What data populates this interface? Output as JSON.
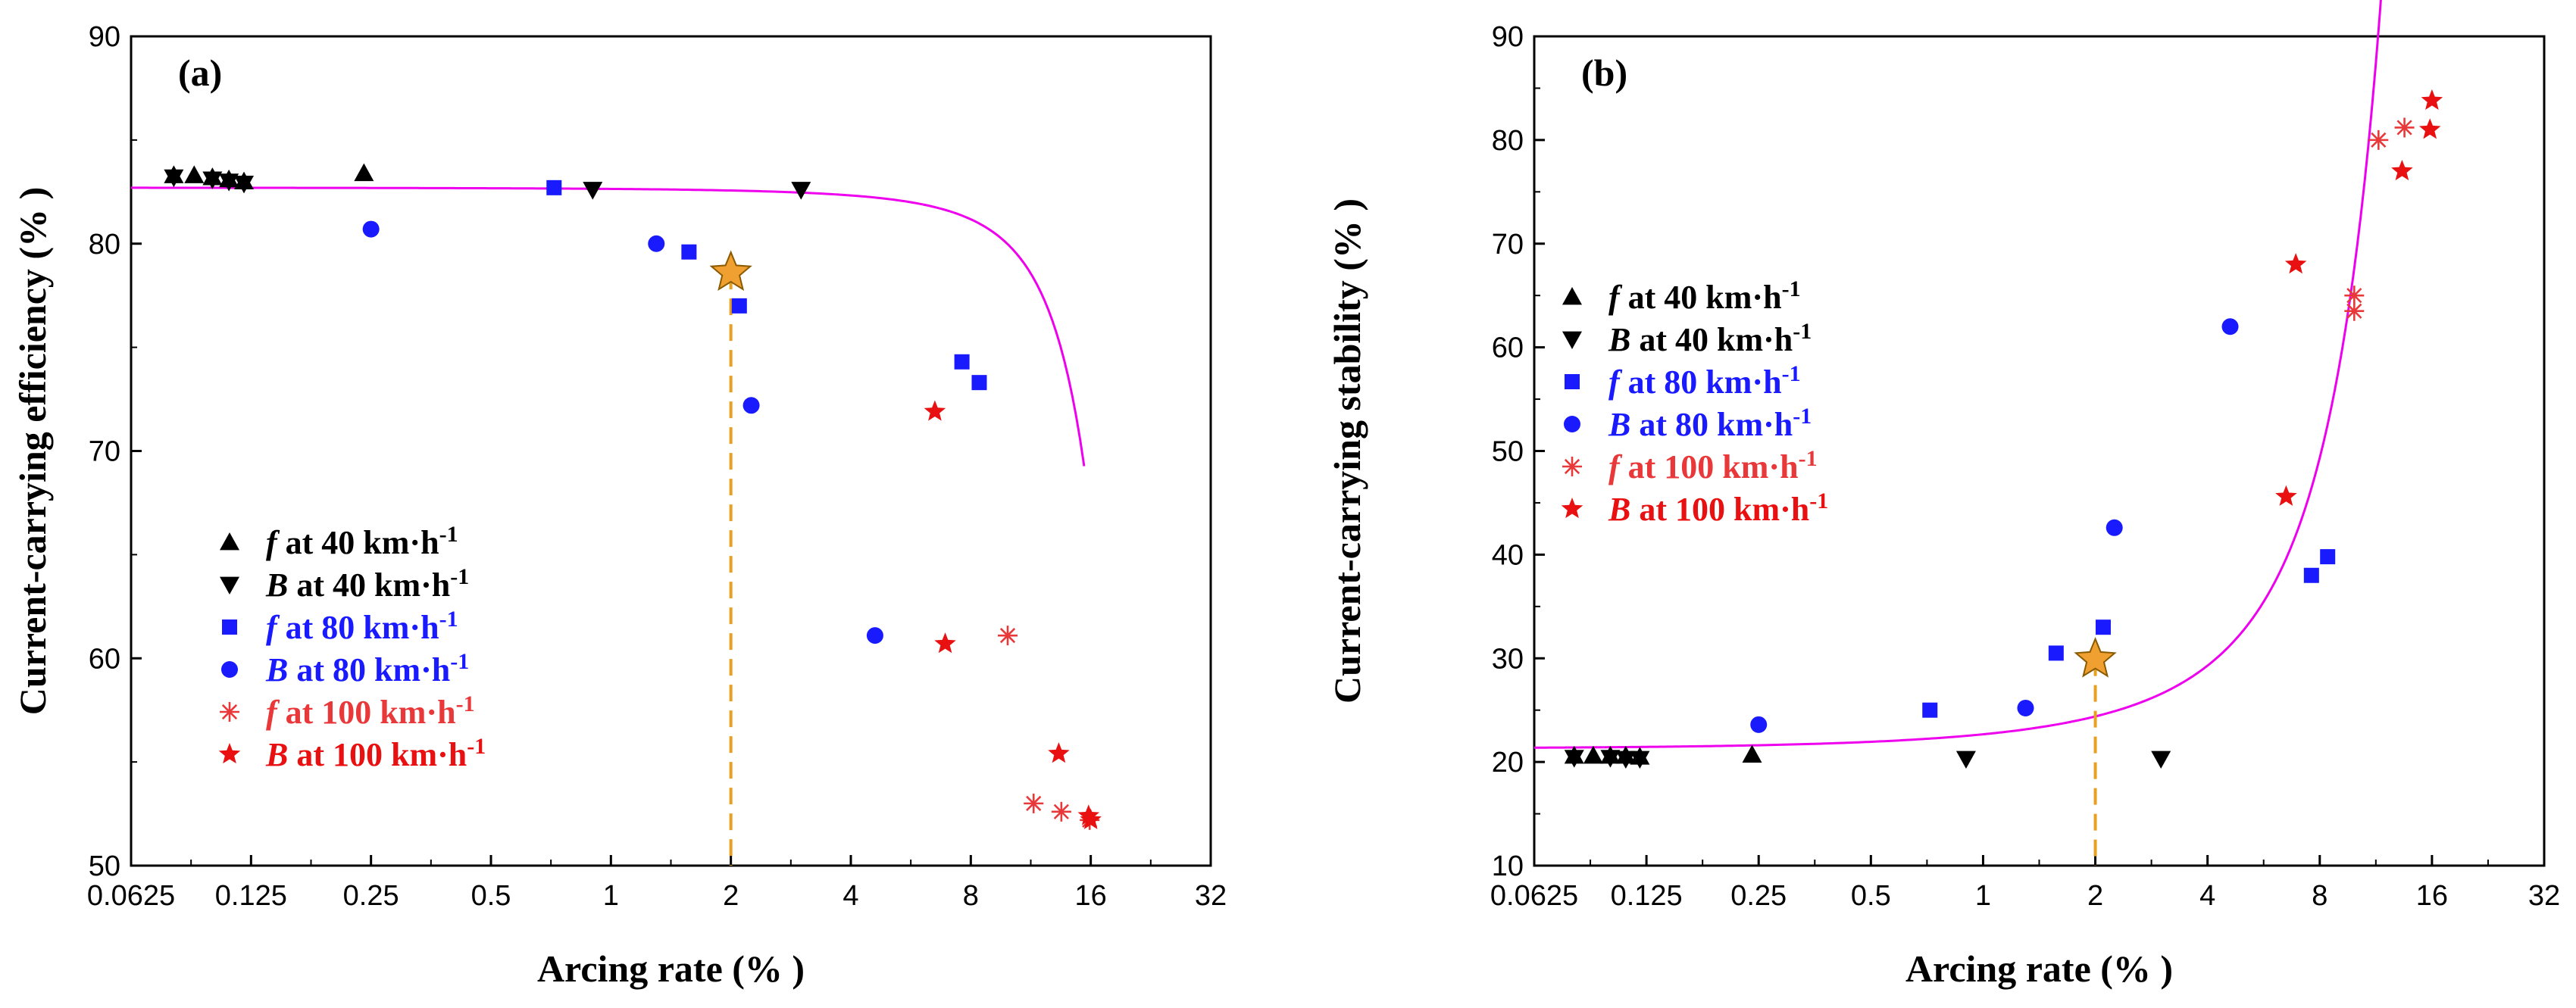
{
  "colors": {
    "fit": "#ee00ee",
    "guide": "#e8a020",
    "star_fill": "#f0a030",
    "star_stroke": "#8a5a00"
  },
  "chart_data": [
    {
      "id": "a",
      "type": "scatter",
      "panel_label": "(a)",
      "xlabel": "Arcing rate (% )",
      "ylabel": "Current-carrying efficiency (% )",
      "x_scale": "log2",
      "xlim": [
        0.0625,
        32
      ],
      "ylim": [
        50,
        90
      ],
      "x_ticks": [
        0.0625,
        0.125,
        0.25,
        0.5,
        1,
        2,
        4,
        8,
        16,
        32
      ],
      "x_tick_labels": [
        "0.0625",
        "0.125",
        "0.25",
        "0.5",
        "1",
        "2",
        "4",
        "8",
        "16",
        "32"
      ],
      "y_ticks": [
        50,
        60,
        70,
        80,
        90
      ],
      "y_tick_labels": [
        "50",
        "60",
        "70",
        "80",
        "90"
      ],
      "legend_position": "bottom-left",
      "series": [
        {
          "name_italic": "f",
          "name_rest": " at 40 km·h",
          "name_sup": "-1",
          "marker": "triangle-up",
          "color": "#000000",
          "points": [
            [
              0.08,
              83.3
            ],
            [
              0.09,
              83.3
            ],
            [
              0.1,
              83.2
            ],
            [
              0.11,
              83.1
            ],
            [
              0.12,
              83.0
            ],
            [
              0.24,
              83.4
            ]
          ]
        },
        {
          "name_italic": "B",
          "name_rest": " at 40 km·h",
          "name_sup": "-1",
          "marker": "triangle-down",
          "color": "#000000",
          "points": [
            [
              0.08,
              83.2
            ],
            [
              0.1,
              83.1
            ],
            [
              0.11,
              83.0
            ],
            [
              0.12,
              82.9
            ],
            [
              0.9,
              82.6
            ],
            [
              3.0,
              82.6
            ]
          ]
        },
        {
          "name_italic": "f",
          "name_rest": " at 80 km·h",
          "name_sup": "-1",
          "marker": "square",
          "color": "#1a1aff",
          "points": [
            [
              0.72,
              82.7
            ],
            [
              1.57,
              79.6
            ],
            [
              2.1,
              77.0
            ],
            [
              7.6,
              74.3
            ],
            [
              8.4,
              73.3
            ]
          ]
        },
        {
          "name_italic": "B",
          "name_rest": " at 80 km·h",
          "name_sup": "-1",
          "marker": "circle",
          "color": "#1a1aff",
          "points": [
            [
              0.25,
              80.7
            ],
            [
              1.3,
              80.0
            ],
            [
              2.25,
              72.2
            ],
            [
              4.6,
              61.1
            ]
          ]
        },
        {
          "name_italic": "f",
          "name_rest": " at 100 km·h",
          "name_sup": "-1",
          "marker": "asterisk",
          "color": "#e8383a",
          "points": [
            [
              9.9,
              61.1
            ],
            [
              11.5,
              53.0
            ],
            [
              13.5,
              52.6
            ],
            [
              15.9,
              52.2
            ]
          ]
        },
        {
          "name_italic": "B",
          "name_rest": " at 100 km·h",
          "name_sup": "-1",
          "marker": "star",
          "color": "#e81010",
          "points": [
            [
              6.5,
              71.9
            ],
            [
              6.9,
              60.7
            ],
            [
              13.3,
              55.4
            ],
            [
              15.8,
              52.4
            ],
            [
              16.0,
              52.2
            ]
          ]
        }
      ],
      "fit_curve": {
        "model": "y = 82.7 - 0.18*(exp(x/3.56)-1)",
        "x_range": [
          0.0625,
          15.4
        ]
      },
      "highlight": {
        "x": 2.0,
        "y": 78.6
      }
    },
    {
      "id": "b",
      "type": "scatter",
      "panel_label": "(b)",
      "xlabel": "Arcing rate (% )",
      "ylabel": "Current-carrying stability (% )",
      "x_scale": "log2",
      "xlim": [
        0.0625,
        32
      ],
      "ylim": [
        10,
        90
      ],
      "x_ticks": [
        0.0625,
        0.125,
        0.25,
        0.5,
        1,
        2,
        4,
        8,
        16,
        32
      ],
      "x_tick_labels": [
        "0.0625",
        "0.125",
        "0.25",
        "0.5",
        "1",
        "2",
        "4",
        "8",
        "16",
        "32"
      ],
      "y_ticks": [
        10,
        20,
        30,
        40,
        50,
        60,
        70,
        80,
        90
      ],
      "y_tick_labels": [
        "10",
        "20",
        "30",
        "40",
        "50",
        "60",
        "70",
        "80",
        "90"
      ],
      "legend_position": "top-left",
      "series": [
        {
          "name_italic": "f",
          "name_rest": " at 40 km·h",
          "name_sup": "-1",
          "marker": "triangle-up",
          "color": "#000000",
          "points": [
            [
              0.08,
              20.6
            ],
            [
              0.09,
              20.6
            ],
            [
              0.1,
              20.6
            ],
            [
              0.11,
              20.6
            ],
            [
              0.12,
              20.5
            ],
            [
              0.24,
              20.7
            ]
          ]
        },
        {
          "name_italic": "B",
          "name_rest": " at 40 km·h",
          "name_sup": "-1",
          "marker": "triangle-down",
          "color": "#000000",
          "points": [
            [
              0.08,
              20.4
            ],
            [
              0.1,
              20.4
            ],
            [
              0.11,
              20.3
            ],
            [
              0.12,
              20.3
            ],
            [
              0.9,
              20.3
            ],
            [
              3.0,
              20.3
            ]
          ]
        },
        {
          "name_italic": "f",
          "name_rest": " at 80 km·h",
          "name_sup": "-1",
          "marker": "square",
          "color": "#1a1aff",
          "points": [
            [
              0.72,
              25.0
            ],
            [
              1.57,
              30.5
            ],
            [
              2.1,
              33.0
            ],
            [
              7.6,
              38.0
            ],
            [
              8.4,
              39.8
            ]
          ]
        },
        {
          "name_italic": "B",
          "name_rest": " at 80 km·h",
          "name_sup": "-1",
          "marker": "circle",
          "color": "#1a1aff",
          "points": [
            [
              0.25,
              23.6
            ],
            [
              1.3,
              25.2
            ],
            [
              2.25,
              42.6
            ],
            [
              4.6,
              62.0
            ]
          ]
        },
        {
          "name_italic": "f",
          "name_rest": " at 100 km·h",
          "name_sup": "-1",
          "marker": "asterisk",
          "color": "#e8383a",
          "points": [
            [
              9.9,
              65.0
            ],
            [
              9.9,
              63.5
            ],
            [
              11.5,
              80.0
            ],
            [
              13.5,
              81.2
            ]
          ]
        },
        {
          "name_italic": "B",
          "name_rest": " at 100 km·h",
          "name_sup": "-1",
          "marker": "star",
          "color": "#e81010",
          "points": [
            [
              6.5,
              45.6
            ],
            [
              6.9,
              68.0
            ],
            [
              13.3,
              77.0
            ],
            [
              15.8,
              81.0
            ],
            [
              16.0,
              83.8
            ]
          ]
        }
      ],
      "fit_curve": {
        "model": "y = 21.3 + 5.3*(exp(x/4.35)-1)",
        "x_range": [
          0.0625,
          15.6
        ]
      },
      "highlight": {
        "x": 2.0,
        "y": 29.9
      }
    }
  ]
}
